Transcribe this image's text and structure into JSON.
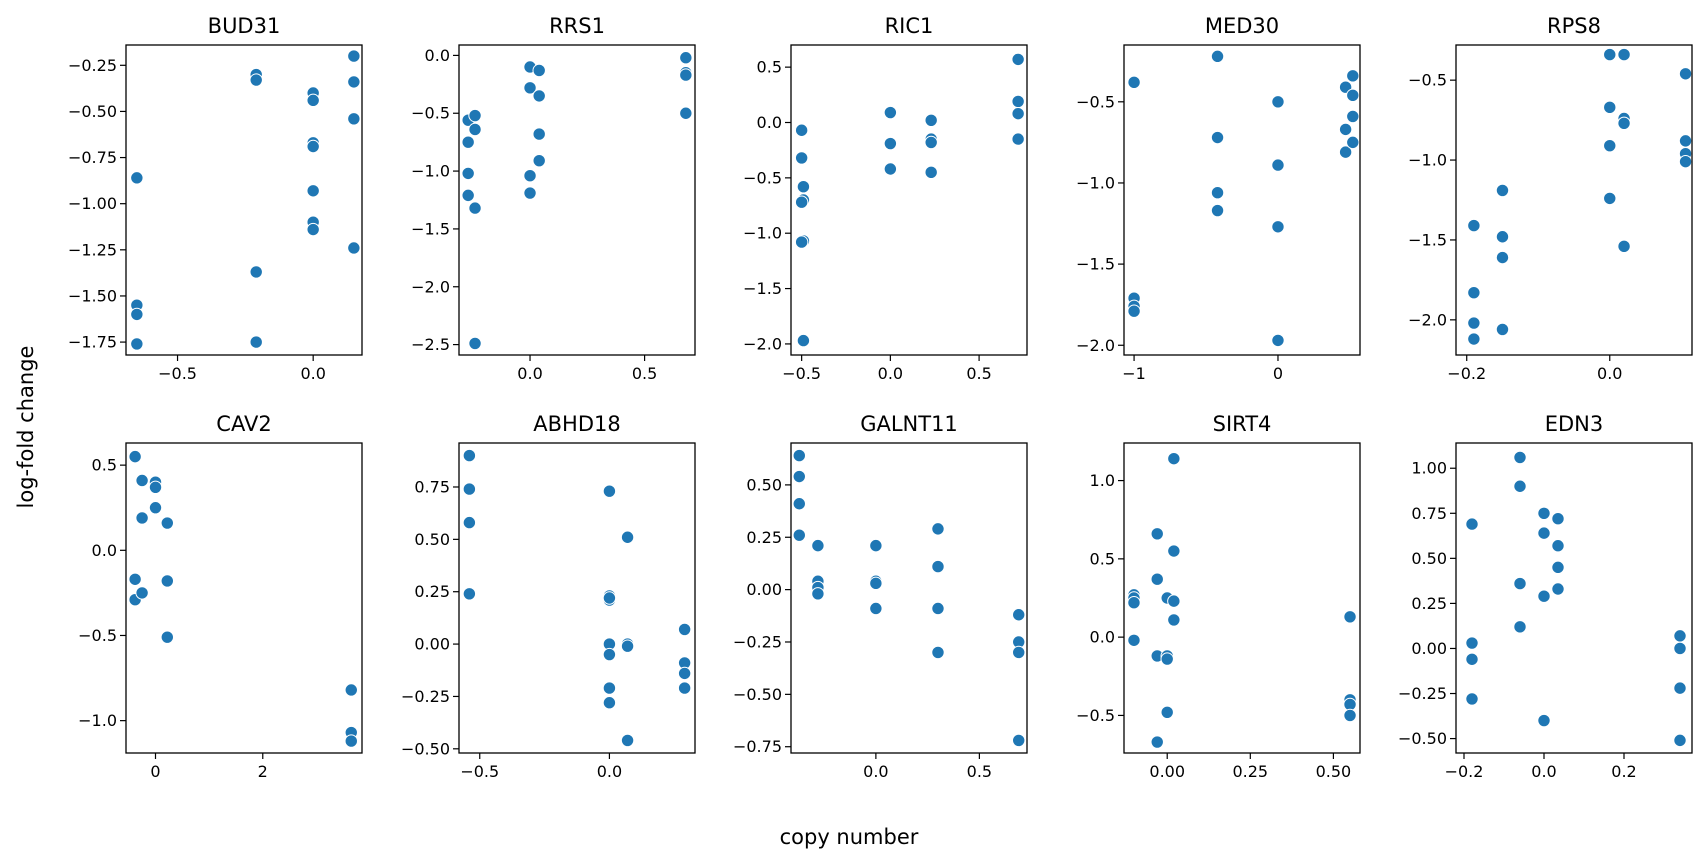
{
  "figure": {
    "xlabel": "copy number",
    "ylabel": "log-fold change",
    "marker_color": "#1f77b4"
  },
  "chart_data": [
    {
      "type": "scatter",
      "title": "BUD31",
      "xlim": [
        -0.69,
        0.18
      ],
      "ylim": [
        -1.82,
        -0.14
      ],
      "xticks": [
        -0.5,
        0.0
      ],
      "xtick_labels": [
        "−0.5",
        "0.0"
      ],
      "yticks": [
        -1.75,
        -1.5,
        -1.25,
        -1.0,
        -0.75,
        -0.5,
        -0.25
      ],
      "ytick_labels": [
        "−1.75",
        "−1.50",
        "−1.25",
        "−1.00",
        "−0.75",
        "−0.50",
        "−0.25"
      ],
      "points": [
        [
          -0.65,
          -0.86
        ],
        [
          -0.65,
          -1.55
        ],
        [
          -0.65,
          -1.6
        ],
        [
          -0.65,
          -1.76
        ],
        [
          -0.21,
          -0.3
        ],
        [
          -0.21,
          -0.33
        ],
        [
          -0.21,
          -1.37
        ],
        [
          -0.21,
          -1.75
        ],
        [
          0.0,
          -0.4
        ],
        [
          0.0,
          -0.44
        ],
        [
          0.0,
          -0.67
        ],
        [
          0.0,
          -0.69
        ],
        [
          0.0,
          -0.93
        ],
        [
          0.0,
          -1.1
        ],
        [
          0.0,
          -1.14
        ],
        [
          0.15,
          -0.2
        ],
        [
          0.15,
          -0.34
        ],
        [
          0.15,
          -0.54
        ],
        [
          0.15,
          -1.24
        ]
      ]
    },
    {
      "type": "scatter",
      "title": "RRS1",
      "xlim": [
        -0.31,
        0.72
      ],
      "ylim": [
        -2.59,
        0.09
      ],
      "xticks": [
        0.0,
        0.5
      ],
      "xtick_labels": [
        "0.0",
        "0.5"
      ],
      "yticks": [
        -2.5,
        -2.0,
        -1.5,
        -1.0,
        -0.5,
        0.0
      ],
      "ytick_labels": [
        "−2.5",
        "−2.0",
        "−1.5",
        "−1.0",
        "−0.5",
        "0.0"
      ],
      "points": [
        [
          -0.27,
          -0.56
        ],
        [
          -0.27,
          -0.75
        ],
        [
          -0.27,
          -1.02
        ],
        [
          -0.27,
          -1.21
        ],
        [
          -0.24,
          -0.52
        ],
        [
          -0.24,
          -0.64
        ],
        [
          -0.24,
          -1.32
        ],
        [
          -0.24,
          -2.49
        ],
        [
          0.0,
          -0.1
        ],
        [
          0.0,
          -0.28
        ],
        [
          0.0,
          -1.04
        ],
        [
          0.0,
          -1.19
        ],
        [
          0.04,
          -0.13
        ],
        [
          0.04,
          -0.35
        ],
        [
          0.04,
          -0.68
        ],
        [
          0.04,
          -0.91
        ],
        [
          0.68,
          -0.02
        ],
        [
          0.68,
          -0.15
        ],
        [
          0.68,
          -0.17
        ],
        [
          0.68,
          -0.5
        ]
      ]
    },
    {
      "type": "scatter",
      "title": "RIC1",
      "xlim": [
        -0.56,
        0.77
      ],
      "ylim": [
        -2.1,
        0.7
      ],
      "xticks": [
        -0.5,
        0.0,
        0.5
      ],
      "xtick_labels": [
        "−0.5",
        "0.0",
        "0.5"
      ],
      "yticks": [
        -2.0,
        -1.5,
        -1.0,
        -0.5,
        0.0,
        0.5
      ],
      "ytick_labels": [
        "−2.0",
        "−1.5",
        "−1.0",
        "−0.5",
        "0.0",
        "0.5"
      ],
      "points": [
        [
          -0.5,
          -0.07
        ],
        [
          -0.5,
          -0.32
        ],
        [
          -0.49,
          -0.58
        ],
        [
          -0.49,
          -0.7
        ],
        [
          -0.5,
          -0.72
        ],
        [
          -0.49,
          -1.07
        ],
        [
          -0.5,
          -1.08
        ],
        [
          -0.49,
          -1.97
        ],
        [
          0.0,
          0.09
        ],
        [
          0.0,
          -0.19
        ],
        [
          0.0,
          -0.42
        ],
        [
          0.23,
          0.02
        ],
        [
          0.23,
          -0.15
        ],
        [
          0.23,
          -0.18
        ],
        [
          0.23,
          -0.45
        ],
        [
          0.72,
          0.57
        ],
        [
          0.72,
          0.19
        ],
        [
          0.72,
          0.08
        ],
        [
          0.72,
          -0.15
        ]
      ]
    },
    {
      "type": "scatter",
      "title": "MED30",
      "xlim": [
        -1.07,
        0.57
      ],
      "ylim": [
        -2.06,
        -0.15
      ],
      "xticks": [
        -1,
        0
      ],
      "xtick_labels": [
        "−1",
        "0"
      ],
      "yticks": [
        -2.0,
        -1.5,
        -1.0,
        -0.5
      ],
      "ytick_labels": [
        "−2.0",
        "−1.5",
        "−1.0",
        "−0.5"
      ],
      "points": [
        [
          -1.0,
          -0.38
        ],
        [
          -1.0,
          -1.71
        ],
        [
          -1.0,
          -1.76
        ],
        [
          -1.0,
          -1.79
        ],
        [
          -0.42,
          -0.22
        ],
        [
          -0.42,
          -0.72
        ],
        [
          -0.42,
          -1.06
        ],
        [
          -0.42,
          -1.17
        ],
        [
          0.0,
          -0.5
        ],
        [
          0.0,
          -0.89
        ],
        [
          0.0,
          -1.27
        ],
        [
          0.0,
          -1.97
        ],
        [
          0.47,
          -0.41
        ],
        [
          0.47,
          -0.67
        ],
        [
          0.47,
          -0.81
        ],
        [
          0.52,
          -0.34
        ],
        [
          0.52,
          -0.46
        ],
        [
          0.52,
          -0.59
        ],
        [
          0.52,
          -0.75
        ]
      ]
    },
    {
      "type": "scatter",
      "title": "RPS8",
      "xlim": [
        -0.215,
        0.115
      ],
      "ylim": [
        -2.22,
        -0.28
      ],
      "xticks": [
        -0.2,
        0.0
      ],
      "xtick_labels": [
        "−0.2",
        "0.0"
      ],
      "yticks": [
        -2.0,
        -1.5,
        -1.0,
        -0.5
      ],
      "ytick_labels": [
        "−2.0",
        "−1.5",
        "−1.0",
        "−0.5"
      ],
      "points": [
        [
          -0.19,
          -1.41
        ],
        [
          -0.19,
          -1.83
        ],
        [
          -0.19,
          -2.02
        ],
        [
          -0.19,
          -2.12
        ],
        [
          -0.15,
          -1.19
        ],
        [
          -0.15,
          -1.48
        ],
        [
          -0.15,
          -1.61
        ],
        [
          -0.15,
          -2.06
        ],
        [
          0.0,
          -0.34
        ],
        [
          0.0,
          -0.67
        ],
        [
          0.0,
          -0.91
        ],
        [
          0.0,
          -1.24
        ],
        [
          0.02,
          -0.34
        ],
        [
          0.02,
          -0.74
        ],
        [
          0.02,
          -0.77
        ],
        [
          0.02,
          -1.54
        ],
        [
          0.106,
          -0.46
        ],
        [
          0.106,
          -0.88
        ],
        [
          0.106,
          -0.96
        ],
        [
          0.106,
          -1.01
        ]
      ]
    },
    {
      "type": "scatter",
      "title": "CAV2",
      "xlim": [
        -0.55,
        3.85
      ],
      "ylim": [
        -1.19,
        0.63
      ],
      "xticks": [
        0,
        2
      ],
      "xtick_labels": [
        "0",
        "2"
      ],
      "yticks": [
        -1.0,
        -0.5,
        0.0,
        0.5
      ],
      "ytick_labels": [
        "−1.0",
        "−0.5",
        "0.0",
        "0.5"
      ],
      "points": [
        [
          -0.38,
          0.55
        ],
        [
          -0.38,
          -0.17
        ],
        [
          -0.38,
          -0.29
        ],
        [
          -0.25,
          0.41
        ],
        [
          -0.25,
          0.19
        ],
        [
          -0.25,
          -0.25
        ],
        [
          0.0,
          0.4
        ],
        [
          0.0,
          0.37
        ],
        [
          0.0,
          0.25
        ],
        [
          0.22,
          0.16
        ],
        [
          0.22,
          -0.18
        ],
        [
          0.22,
          -0.51
        ],
        [
          3.65,
          -0.82
        ],
        [
          3.65,
          -1.07
        ],
        [
          3.65,
          -1.12
        ]
      ]
    },
    {
      "type": "scatter",
      "title": "ABHD18",
      "xlim": [
        -0.58,
        0.33
      ],
      "ylim": [
        -0.52,
        0.96
      ],
      "xticks": [
        -0.5,
        0.0
      ],
      "xtick_labels": [
        "−0.5",
        "0.0"
      ],
      "yticks": [
        -0.5,
        -0.25,
        0.0,
        0.25,
        0.5,
        0.75
      ],
      "ytick_labels": [
        "−0.50",
        "−0.25",
        "0.00",
        "0.25",
        "0.50",
        "0.75"
      ],
      "points": [
        [
          -0.54,
          0.9
        ],
        [
          -0.54,
          0.74
        ],
        [
          -0.54,
          0.58
        ],
        [
          -0.54,
          0.24
        ],
        [
          0.0,
          0.73
        ],
        [
          0.0,
          0.23
        ],
        [
          0.0,
          0.21
        ],
        [
          0.0,
          0.22
        ],
        [
          0.0,
          0.0
        ],
        [
          0.0,
          -0.05
        ],
        [
          0.0,
          -0.21
        ],
        [
          0.0,
          -0.28
        ],
        [
          0.07,
          0.51
        ],
        [
          0.07,
          0.0
        ],
        [
          0.07,
          -0.01
        ],
        [
          0.07,
          -0.46
        ],
        [
          0.29,
          0.07
        ],
        [
          0.29,
          -0.09
        ],
        [
          0.29,
          -0.14
        ],
        [
          0.29,
          -0.21
        ]
      ]
    },
    {
      "type": "scatter",
      "title": "GALNT11",
      "xlim": [
        -0.41,
        0.73
      ],
      "ylim": [
        -0.78,
        0.7
      ],
      "xticks": [
        0.0,
        0.5
      ],
      "xtick_labels": [
        "0.0",
        "0.5"
      ],
      "yticks": [
        -0.75,
        -0.5,
        -0.25,
        0.0,
        0.25,
        0.5
      ],
      "ytick_labels": [
        "−0.75",
        "−0.50",
        "−0.25",
        "0.00",
        "0.25",
        "0.50"
      ],
      "points": [
        [
          -0.37,
          0.64
        ],
        [
          -0.37,
          0.54
        ],
        [
          -0.37,
          0.41
        ],
        [
          -0.37,
          0.26
        ],
        [
          -0.28,
          0.21
        ],
        [
          -0.28,
          0.04
        ],
        [
          -0.28,
          0.01
        ],
        [
          -0.28,
          -0.02
        ],
        [
          0.0,
          0.21
        ],
        [
          0.0,
          0.04
        ],
        [
          0.0,
          0.03
        ],
        [
          0.0,
          -0.09
        ],
        [
          0.3,
          0.29
        ],
        [
          0.3,
          0.11
        ],
        [
          0.3,
          -0.09
        ],
        [
          0.3,
          -0.3
        ],
        [
          0.69,
          -0.12
        ],
        [
          0.69,
          -0.25
        ],
        [
          0.69,
          -0.3
        ],
        [
          0.69,
          -0.72
        ]
      ]
    },
    {
      "type": "scatter",
      "title": "SIRT4",
      "xlim": [
        -0.13,
        0.58
      ],
      "ylim": [
        -0.74,
        1.24
      ],
      "xticks": [
        0.0,
        0.25,
        0.5
      ],
      "xtick_labels": [
        "0.00",
        "0.25",
        "0.50"
      ],
      "yticks": [
        -0.5,
        0.0,
        0.5,
        1.0
      ],
      "ytick_labels": [
        "−0.5",
        "0.0",
        "0.5",
        "1.0"
      ],
      "points": [
        [
          -0.1,
          0.27
        ],
        [
          -0.1,
          0.25
        ],
        [
          -0.1,
          0.22
        ],
        [
          -0.1,
          -0.02
        ],
        [
          -0.03,
          0.66
        ],
        [
          -0.03,
          0.37
        ],
        [
          -0.03,
          -0.12
        ],
        [
          -0.03,
          -0.67
        ],
        [
          0.0,
          0.25
        ],
        [
          0.0,
          -0.12
        ],
        [
          0.0,
          -0.14
        ],
        [
          0.0,
          -0.48
        ],
        [
          0.02,
          1.14
        ],
        [
          0.02,
          0.55
        ],
        [
          0.02,
          0.23
        ],
        [
          0.02,
          0.11
        ],
        [
          0.55,
          0.13
        ],
        [
          0.55,
          -0.4
        ],
        [
          0.55,
          -0.43
        ],
        [
          0.55,
          -0.5
        ]
      ]
    },
    {
      "type": "scatter",
      "title": "EDN3",
      "xlim": [
        -0.22,
        0.37
      ],
      "ylim": [
        -0.58,
        1.14
      ],
      "xticks": [
        -0.2,
        0.0,
        0.2
      ],
      "xtick_labels": [
        "−0.2",
        "0.0",
        "0.2"
      ],
      "yticks": [
        -0.5,
        -0.25,
        0.0,
        0.25,
        0.5,
        0.75,
        1.0
      ],
      "ytick_labels": [
        "−0.50",
        "−0.25",
        "0.00",
        "0.25",
        "0.50",
        "0.75",
        "1.00"
      ],
      "points": [
        [
          -0.18,
          0.69
        ],
        [
          -0.18,
          0.03
        ],
        [
          -0.18,
          -0.06
        ],
        [
          -0.18,
          -0.28
        ],
        [
          -0.06,
          1.06
        ],
        [
          -0.06,
          0.9
        ],
        [
          -0.06,
          0.36
        ],
        [
          -0.06,
          0.12
        ],
        [
          0.0,
          0.75
        ],
        [
          0.0,
          0.64
        ],
        [
          0.0,
          0.29
        ],
        [
          0.0,
          -0.4
        ],
        [
          0.035,
          0.72
        ],
        [
          0.035,
          0.57
        ],
        [
          0.035,
          0.45
        ],
        [
          0.035,
          0.33
        ],
        [
          0.34,
          0.07
        ],
        [
          0.34,
          0.0
        ],
        [
          0.34,
          -0.22
        ],
        [
          0.34,
          -0.51
        ]
      ]
    }
  ]
}
